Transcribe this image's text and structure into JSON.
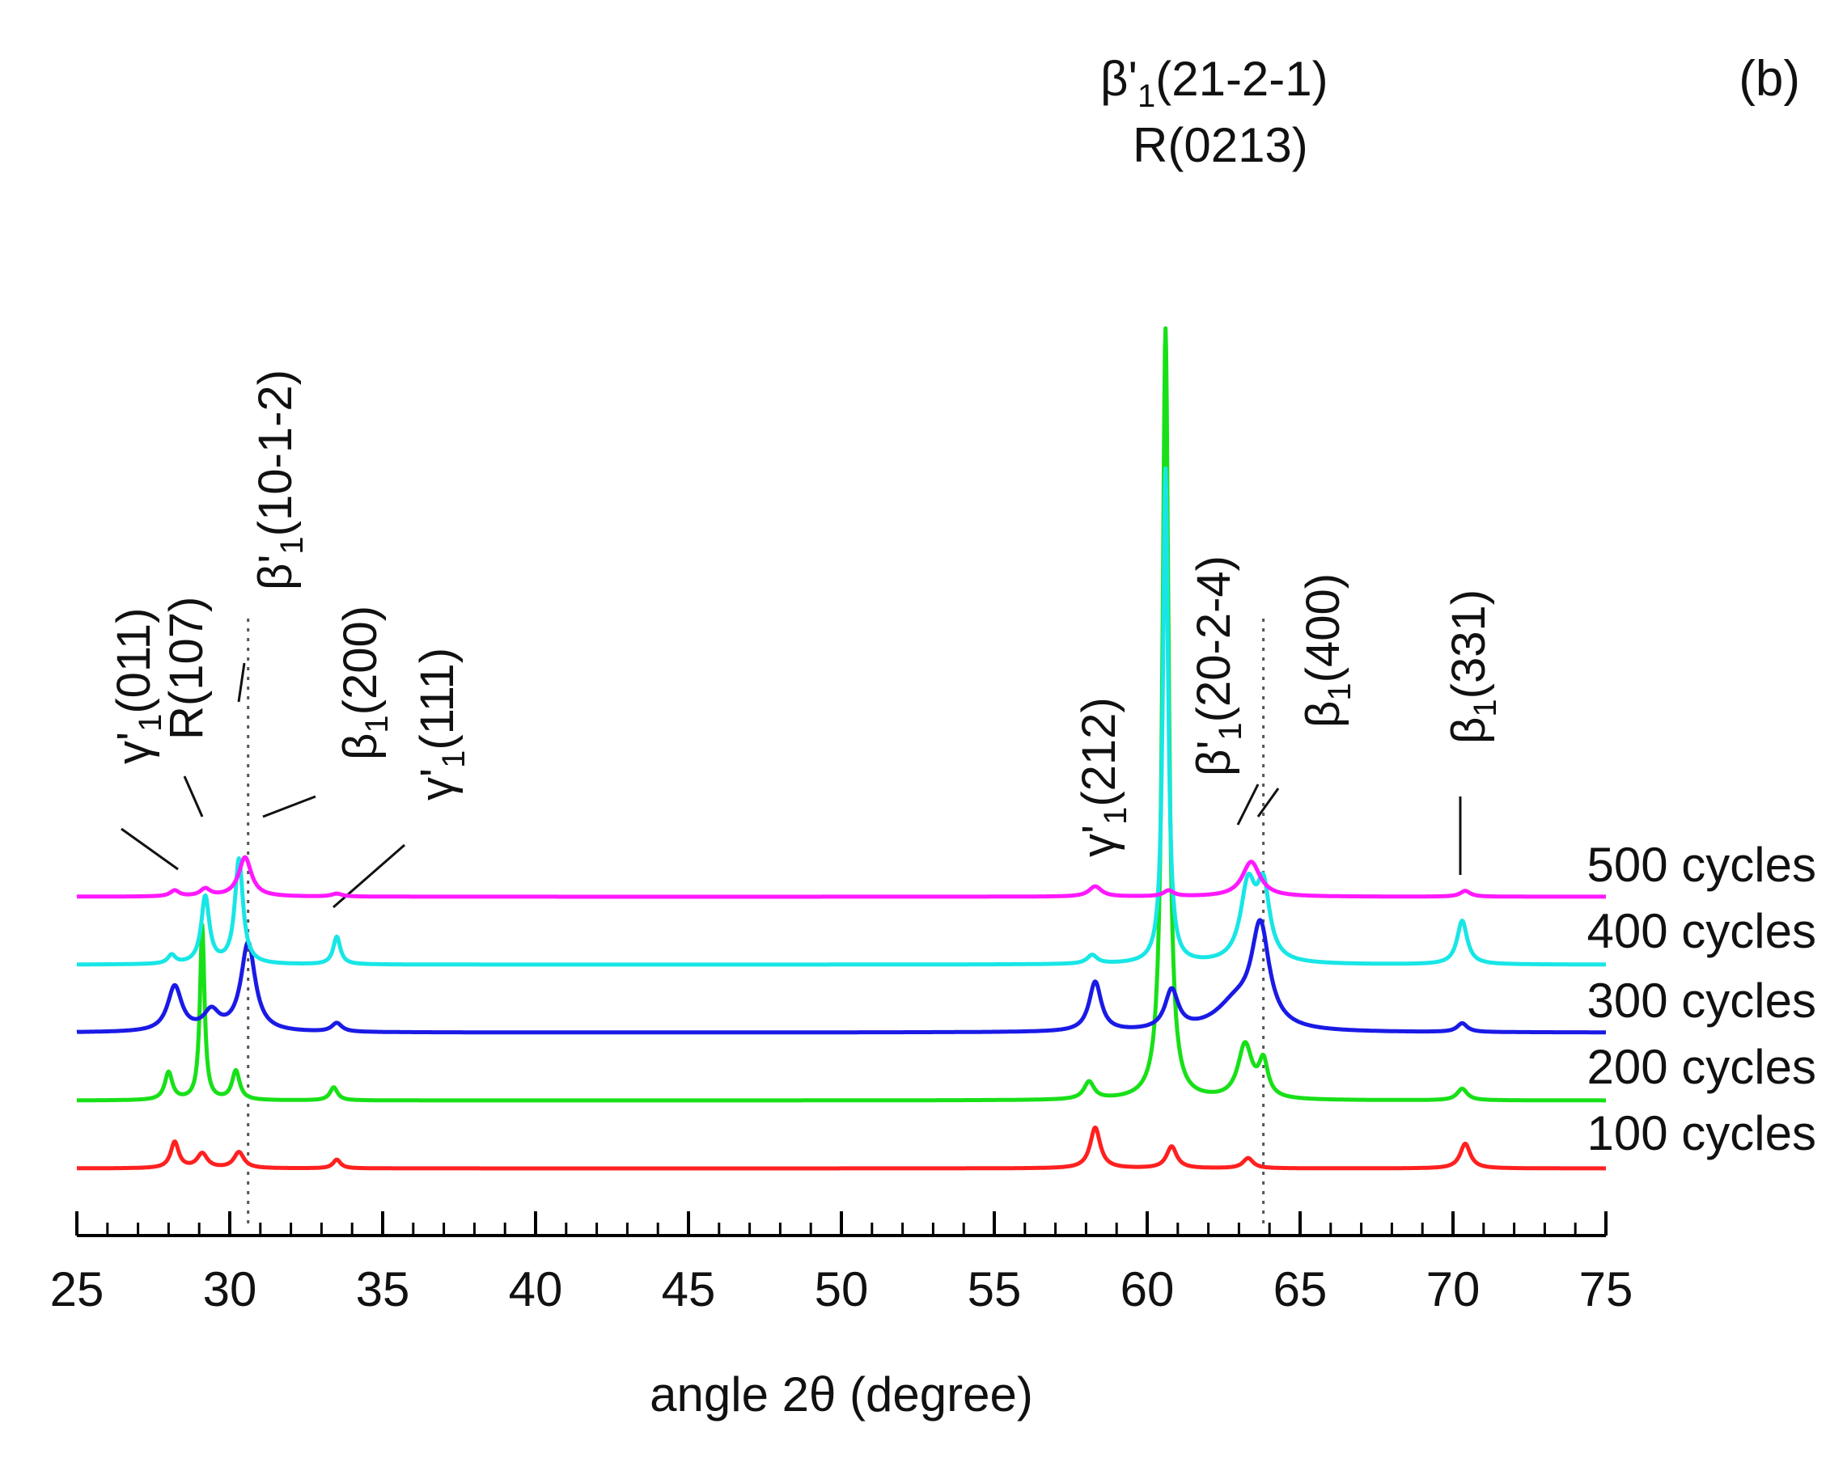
{
  "chart_data": {
    "type": "line",
    "panel_label": "(b)",
    "xlabel": "angle 2θ (degree)",
    "ylabel": "",
    "xlim": [
      25,
      75
    ],
    "x_ticks": [
      "25",
      "30",
      "35",
      "40",
      "45",
      "50",
      "55",
      "60",
      "65",
      "70",
      "75"
    ],
    "grid": false,
    "stacked_offsets": true,
    "series": [
      {
        "name": "100 cycles",
        "label": "100 cycles",
        "color": "#ff2020",
        "offset": 0,
        "peaks": [
          [
            28.2,
            0.9,
            0.16
          ],
          [
            29.1,
            0.5,
            0.2
          ],
          [
            30.3,
            0.55,
            0.2
          ],
          [
            33.5,
            0.3,
            0.15
          ],
          [
            58.3,
            1.4,
            0.2
          ],
          [
            60.8,
            0.75,
            0.2
          ],
          [
            63.3,
            0.35,
            0.2
          ],
          [
            70.4,
            0.85,
            0.2
          ]
        ]
      },
      {
        "name": "200 cycles",
        "label": "200 cycles",
        "color": "#18e018",
        "offset": 1,
        "peaks": [
          [
            28.0,
            0.95,
            0.15
          ],
          [
            29.1,
            6.0,
            0.09
          ],
          [
            30.2,
            1.0,
            0.15
          ],
          [
            33.4,
            0.45,
            0.15
          ],
          [
            58.1,
            0.6,
            0.2
          ],
          [
            60.6,
            26.5,
            0.12
          ],
          [
            63.2,
            1.85,
            0.28
          ],
          [
            63.8,
            1.2,
            0.18
          ],
          [
            70.3,
            0.4,
            0.2
          ]
        ]
      },
      {
        "name": "300 cycles",
        "label": "300 cycles",
        "color": "#1a1ae6",
        "offset": 2,
        "peaks": [
          [
            28.2,
            1.55,
            0.28
          ],
          [
            29.4,
            0.65,
            0.3
          ],
          [
            30.6,
            3.05,
            0.28
          ],
          [
            33.5,
            0.3,
            0.2
          ],
          [
            58.3,
            1.7,
            0.24
          ],
          [
            60.8,
            1.35,
            0.26
          ],
          [
            62.9,
            0.9,
            0.8
          ],
          [
            63.7,
            3.4,
            0.35
          ],
          [
            70.3,
            0.3,
            0.2
          ]
        ]
      },
      {
        "name": "400 cycles",
        "label": "400 cycles",
        "color": "#18e6e6",
        "offset": 3,
        "peaks": [
          [
            28.1,
            0.3,
            0.15
          ],
          [
            29.2,
            2.3,
            0.16
          ],
          [
            30.3,
            3.6,
            0.16
          ],
          [
            33.5,
            0.95,
            0.14
          ],
          [
            58.2,
            0.3,
            0.2
          ],
          [
            60.6,
            17.0,
            0.1
          ],
          [
            63.3,
            2.6,
            0.3
          ],
          [
            63.8,
            2.4,
            0.25
          ],
          [
            70.3,
            1.5,
            0.2
          ]
        ]
      },
      {
        "name": "500 cycles",
        "label": "500 cycles",
        "color": "#ff19ff",
        "offset": 4,
        "peaks": [
          [
            28.2,
            0.2,
            0.18
          ],
          [
            29.2,
            0.25,
            0.2
          ],
          [
            30.5,
            1.35,
            0.25
          ],
          [
            33.5,
            0.1,
            0.2
          ],
          [
            58.3,
            0.35,
            0.25
          ],
          [
            60.7,
            0.2,
            0.2
          ],
          [
            63.4,
            1.2,
            0.35
          ],
          [
            70.4,
            0.2,
            0.2
          ]
        ]
      }
    ],
    "reference_lines_x": [
      30.6,
      63.8
    ],
    "annotations": [
      {
        "id": "gamma011",
        "base": "γ'",
        "sub": "1",
        "hkl": "(011)",
        "x": 28.2
      },
      {
        "id": "r107",
        "base": "R",
        "sub": "",
        "hkl": "(107)",
        "x": 29.1
      },
      {
        "id": "beta10",
        "base": "β'",
        "sub": "1",
        "hkl": "(10-1-2)",
        "x": 30.2
      },
      {
        "id": "beta200",
        "base": "β",
        "sub": "1",
        "hkl": "(200)",
        "x": 30.6
      },
      {
        "id": "gamma111",
        "base": "γ'",
        "sub": "1",
        "hkl": "(111)",
        "x": 33.5
      },
      {
        "id": "gamma212",
        "base": "γ'",
        "sub": "1",
        "hkl": "(212)",
        "x": 58.3
      },
      {
        "id": "beta2021",
        "base": "β'",
        "sub": "1",
        "hkl": "(21-2-1)",
        "x": 60.6
      },
      {
        "id": "r0213",
        "base": "R",
        "sub": "",
        "hkl": "(0213)",
        "x": 60.6
      },
      {
        "id": "beta2024",
        "base": "β'",
        "sub": "1",
        "hkl": "(20-2-4)",
        "x": 63.2
      },
      {
        "id": "beta400",
        "base": "β",
        "sub": "1",
        "hkl": "(400)",
        "x": 63.8
      },
      {
        "id": "beta331",
        "base": "β",
        "sub": "1",
        "hkl": "(331)",
        "x": 70.3
      }
    ]
  }
}
